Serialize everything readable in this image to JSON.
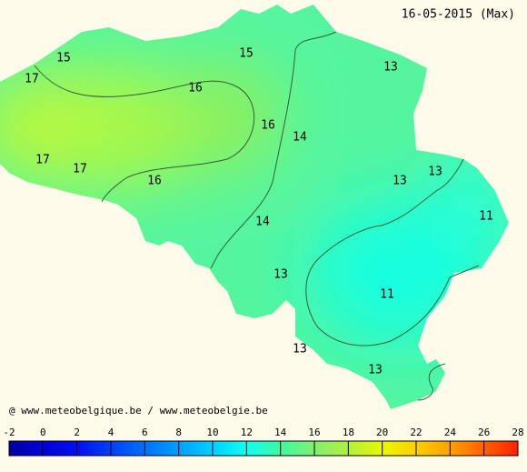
{
  "header": {
    "title": "16-05-2015 (Max)",
    "attribution": "@ www.meteobelgique.be / www.meteobelgie.be"
  },
  "map": {
    "labels": [
      15,
      17,
      16,
      15,
      13,
      16,
      14,
      17,
      17,
      16,
      13,
      13,
      11,
      14,
      13,
      11,
      13,
      13
    ]
  },
  "legend": {
    "ticks": [
      -2,
      0,
      2,
      4,
      6,
      8,
      10,
      12,
      14,
      16,
      18,
      20,
      22,
      24,
      26,
      28
    ],
    "colors": [
      "#0000a0",
      "#0000d8",
      "#0010f0",
      "#0040f4",
      "#0070f8",
      "#00a0fc",
      "#00d0ff",
      "#10fff0",
      "#40f8a0",
      "#80f070",
      "#b0f040",
      "#e8f800",
      "#ffd000",
      "#ffa000",
      "#ff6000",
      "#ff2000"
    ]
  }
}
